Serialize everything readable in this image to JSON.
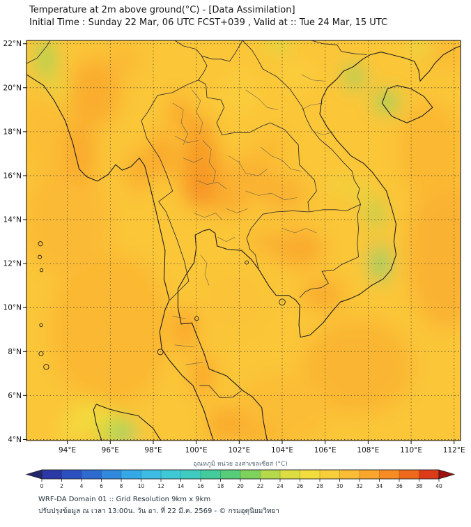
{
  "header": {
    "title": "Temperature at 2m above ground(°C) - [Data Assimilation]",
    "subtitle": "Initial Time : Sunday 22 Mar, 06 UTC FCST+039 , Valid at :: Tue 24 Mar, 15 UTC"
  },
  "footer": {
    "line1": "WRF-DA Domain 01 :: Grid Resolution 9km x 9km",
    "line2": "ปรับปรุงข้อมูล ณ เวลา 13:00น. วัน อา. ที่ 22 มี.ค. 2569 - © กรมอุตุนิยมวิทยา"
  },
  "chart_data": {
    "type": "heatmap",
    "title": "Temperature at 2m above ground(°C) - [Data Assimilation]",
    "subtitle": "Initial Time : Sunday 22 Mar, 06 UTC FCST+039 , Valid at :: Tue 24 Mar, 15 UTC",
    "units": "°C",
    "lon_range": [
      92.1,
      112.3
    ],
    "lat_range": [
      3.95,
      22.15
    ],
    "lon_ticks": [
      94,
      96,
      98,
      100,
      102,
      104,
      106,
      108,
      110,
      112
    ],
    "lon_tick_labels": [
      "94°E",
      "96°E",
      "98°E",
      "100°E",
      "102°E",
      "104°E",
      "106°E",
      "108°E",
      "110°E",
      "112°E"
    ],
    "lat_ticks": [
      4,
      6,
      8,
      10,
      12,
      14,
      16,
      18,
      20,
      22
    ],
    "lat_tick_labels": [
      "4°N",
      "6°N",
      "8°N",
      "10°N",
      "12°N",
      "14°N",
      "16°N",
      "18°N",
      "20°N",
      "22°N"
    ],
    "grid": "dotted",
    "base_temp_c": 30.3,
    "colorbar": {
      "label": "อุณหภูมิ หน่วย องศาเซลเซียส (°C)",
      "min": 0,
      "max": 40,
      "ticks": [
        0,
        2,
        4,
        6,
        8,
        10,
        12,
        14,
        16,
        18,
        20,
        22,
        24,
        26,
        28,
        30,
        32,
        34,
        36,
        38,
        40
      ],
      "under_color": "#23256E",
      "over_color": "#9E100F",
      "stops": [
        {
          "t": 0,
          "c": "#2B2E9B"
        },
        {
          "t": 3,
          "c": "#2C50C0"
        },
        {
          "t": 6,
          "c": "#2E79D8"
        },
        {
          "t": 9,
          "c": "#35A8E8"
        },
        {
          "t": 12,
          "c": "#3FC6E0"
        },
        {
          "t": 15,
          "c": "#40CBC0"
        },
        {
          "t": 18,
          "c": "#44CB8A"
        },
        {
          "t": 21,
          "c": "#7ED25B"
        },
        {
          "t": 24,
          "c": "#CFDE45"
        },
        {
          "t": 27,
          "c": "#F2DC3E"
        },
        {
          "t": 30,
          "c": "#FBC93A"
        },
        {
          "t": 33,
          "c": "#FAA62C"
        },
        {
          "t": 36,
          "c": "#F47F1E"
        },
        {
          "t": 38,
          "c": "#E85317"
        },
        {
          "t": 40,
          "c": "#CE2317"
        }
      ]
    },
    "field_estimate_format": [
      "lon_deg",
      "lat_deg",
      "rx_deg",
      "ry_deg",
      "temp_c"
    ],
    "field_estimate": [
      [
        96.0,
        9.0,
        2.8,
        3.5,
        31.5
      ],
      [
        94.0,
        14.0,
        2.0,
        2.6,
        31.3
      ],
      [
        93.2,
        18.0,
        1.4,
        2.0,
        31.0
      ],
      [
        111.6,
        12.5,
        1.8,
        3.5,
        32.0
      ],
      [
        110.9,
        17.2,
        1.5,
        2.2,
        31.5
      ],
      [
        107.5,
        7.3,
        2.6,
        2.2,
        31.6
      ],
      [
        104.0,
        5.4,
        2.2,
        1.6,
        31.0
      ],
      [
        101.8,
        10.3,
        1.6,
        1.6,
        30.4
      ],
      [
        111.6,
        21.6,
        1.0,
        0.7,
        31.3
      ],
      [
        95.3,
        19.8,
        1.2,
        1.6,
        32.4
      ],
      [
        94.6,
        17.0,
        0.8,
        1.4,
        32.6
      ],
      [
        96.6,
        21.2,
        0.8,
        0.8,
        31.3
      ],
      [
        97.3,
        16.2,
        0.6,
        1.0,
        32.4
      ],
      [
        100.2,
        16.3,
        1.0,
        1.7,
        33.8
      ],
      [
        100.1,
        17.9,
        0.6,
        0.8,
        33.8
      ],
      [
        99.2,
        18.9,
        0.5,
        0.75,
        33.0
      ],
      [
        98.4,
        17.0,
        0.5,
        1.1,
        33.2
      ],
      [
        100.3,
        15.2,
        0.8,
        0.7,
        34.6
      ],
      [
        101.5,
        15.0,
        0.9,
        0.8,
        32.6
      ],
      [
        102.5,
        15.9,
        1.2,
        1.0,
        32.0
      ],
      [
        104.0,
        15.2,
        1.2,
        0.9,
        32.0
      ],
      [
        103.5,
        17.3,
        0.8,
        0.6,
        31.4
      ],
      [
        104.8,
        12.7,
        1.2,
        0.9,
        32.6
      ],
      [
        103.2,
        13.0,
        0.7,
        0.6,
        32.0
      ],
      [
        105.9,
        10.6,
        1.0,
        0.7,
        32.6
      ],
      [
        99.5,
        9.0,
        0.5,
        1.0,
        33.2
      ],
      [
        100.3,
        6.9,
        0.5,
        1.0,
        33.2
      ],
      [
        101.4,
        4.7,
        1.0,
        0.8,
        32.6
      ],
      [
        102.9,
        4.2,
        0.9,
        0.6,
        32.0
      ],
      [
        102.0,
        19.8,
        1.0,
        1.0,
        29.6
      ],
      [
        104.7,
        20.5,
        1.0,
        0.8,
        29.6
      ],
      [
        93.0,
        21.3,
        0.4,
        1.0,
        22.0
      ],
      [
        93.6,
        19.9,
        0.3,
        0.6,
        26.0
      ],
      [
        103.8,
        22.1,
        0.6,
        0.35,
        24.0
      ],
      [
        110.4,
        21.9,
        0.6,
        0.35,
        26.0
      ],
      [
        107.35,
        20.5,
        0.45,
        0.5,
        21.0
      ],
      [
        108.85,
        19.35,
        0.55,
        0.5,
        21.0
      ],
      [
        108.55,
        12.0,
        0.4,
        0.85,
        20.0
      ],
      [
        108.35,
        14.25,
        0.35,
        0.6,
        22.0
      ],
      [
        107.7,
        15.3,
        0.3,
        0.45,
        25.0
      ],
      [
        106.6,
        15.6,
        0.3,
        0.4,
        26.0
      ],
      [
        96.3,
        4.4,
        0.9,
        0.6,
        23.0
      ],
      [
        96.7,
        4.15,
        0.35,
        0.3,
        18.5
      ],
      [
        95.1,
        5.1,
        0.9,
        0.7,
        27.0
      ],
      [
        94.3,
        4.4,
        0.8,
        0.6,
        28.0
      ]
    ]
  }
}
